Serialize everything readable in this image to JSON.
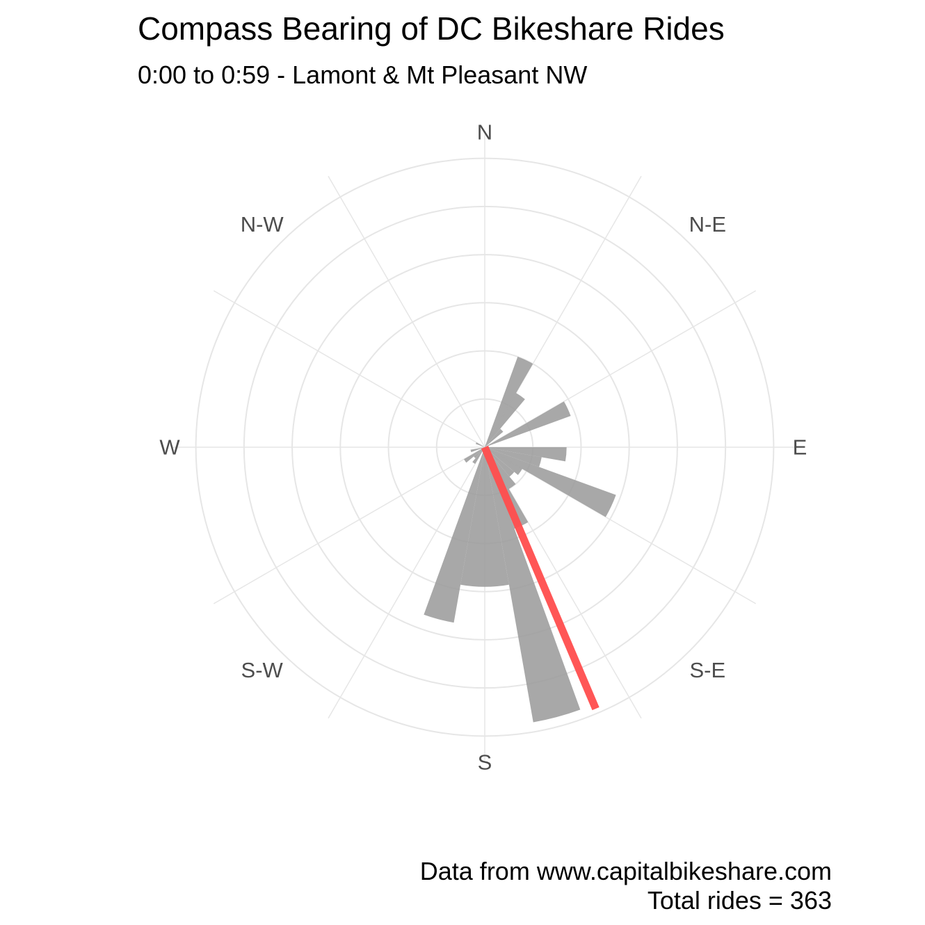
{
  "chart_data": {
    "type": "polar-bar",
    "title": "Compass Bearing of DC Bikeshare Rides",
    "subtitle": "0:00 to 0:59 - Lamont & Mt Pleasant NW",
    "caption_source": "Data from www.capitalbikeshare.com",
    "caption_total": "Total rides =  363",
    "direction_labels": [
      {
        "angle": 0,
        "label": "N"
      },
      {
        "angle": 45,
        "label": "N-E"
      },
      {
        "angle": 90,
        "label": "E"
      },
      {
        "angle": 135,
        "label": "S-E"
      },
      {
        "angle": 180,
        "label": "S"
      },
      {
        "angle": 225,
        "label": "S-W"
      },
      {
        "angle": 270,
        "label": "W"
      },
      {
        "angle": 315,
        "label": "N-W"
      }
    ],
    "grid_rings": [
      1,
      2,
      3,
      4,
      5,
      6
    ],
    "radial_max": 6.5,
    "bin_width_deg": 10,
    "bar_color": "#999999",
    "mean_color": "#ff4d4d",
    "grid_color": "#e6e6e6",
    "bins": [
      {
        "angle": 25,
        "value": 2.0
      },
      {
        "angle": 35,
        "value": 1.3
      },
      {
        "angle": 45,
        "value": 0.5
      },
      {
        "angle": 65,
        "value": 1.9
      },
      {
        "angle": 95,
        "value": 1.7
      },
      {
        "angle": 105,
        "value": 1.2
      },
      {
        "angle": 115,
        "value": 2.9
      },
      {
        "angle": 125,
        "value": 0.9
      },
      {
        "angle": 135,
        "value": 0.8
      },
      {
        "angle": 145,
        "value": 1.0
      },
      {
        "angle": 155,
        "value": 1.8
      },
      {
        "angle": 165,
        "value": 5.8
      },
      {
        "angle": 175,
        "value": 2.9
      },
      {
        "angle": 185,
        "value": 2.9
      },
      {
        "angle": 195,
        "value": 3.7
      },
      {
        "angle": 215,
        "value": 0.4
      },
      {
        "angle": 225,
        "value": 0.3
      },
      {
        "angle": 235,
        "value": 0.5
      },
      {
        "angle": 255,
        "value": 0.3
      },
      {
        "angle": 295,
        "value": 0.2
      }
    ],
    "mean_bearing": {
      "angle": 157,
      "value": 5.9
    }
  }
}
